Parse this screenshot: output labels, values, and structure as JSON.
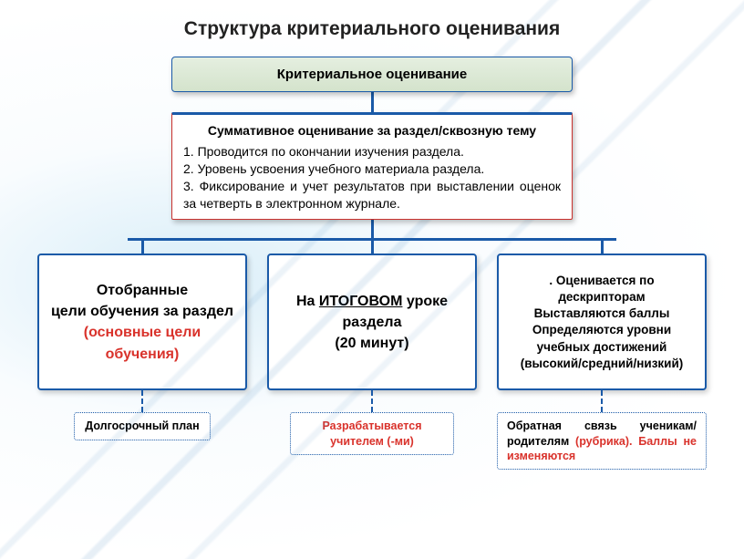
{
  "colors": {
    "accent_blue": "#1a5aa8",
    "accent_red": "#d9322b",
    "root_fill_top": "#e5efe0",
    "root_fill_bottom": "#d4e3cc",
    "background_tint": "#d6ecf6",
    "text": "#222222",
    "box_bg": "#ffffff"
  },
  "title": "Структура критериального оценивания",
  "root": {
    "label": "Критериальное оценивание"
  },
  "mid": {
    "heading": "Суммативное оценивание за раздел/сквозную тему",
    "items": [
      "1.  Проводится по окончании изучения раздела.",
      "2.  Уровень усвоения учебного материала раздела.",
      "3. Фиксирование и учет результатов при выставлении оценок за четверть в электронном журнале."
    ]
  },
  "leaves": [
    {
      "lines": [
        "Отобранные",
        "цели обучения за раздел"
      ],
      "red_line": "(основные цели обучения)",
      "note": "Долгосрочный план",
      "fontsize": 16
    },
    {
      "lines": [
        "На ",
        "раздела",
        "(20 минут)"
      ],
      "underline_word": "ИТОГОВОМ",
      "line0_suffix": " уроке",
      "note": "Разрабатывается учителем (-ми)",
      "note_color": "red",
      "fontsize": 16
    },
    {
      "lines": [
        ". Оценивается по дескрипторам",
        "Выставляются баллы",
        "Определяются уровни учебных достижений (высокий/средний/низкий)"
      ],
      "note_prefix": "Обратная связь ученикам/родителям ",
      "note_red": "(рубрика). Баллы не изменяются",
      "fontsize": 13.5
    }
  ]
}
